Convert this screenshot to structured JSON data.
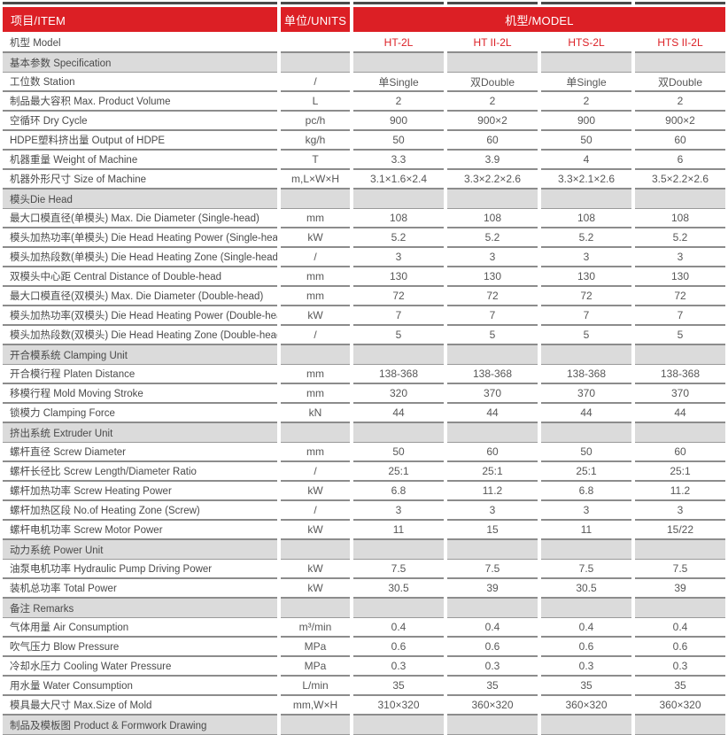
{
  "table": {
    "colors": {
      "accent": "#DC1F25",
      "section_bg": "#DBDBDB",
      "row_line": "#8C8C8C",
      "top_rule": "#4A4A4A"
    },
    "header": {
      "item": "项目/ITEM",
      "units": "单位/UNITS",
      "model": "机型/MODEL"
    },
    "rows": [
      {
        "type": "model",
        "label": "机型 Model",
        "unit": "",
        "values": [
          "HT-2L",
          "HT II-2L",
          "HTS-2L",
          "HTS II-2L"
        ]
      },
      {
        "type": "section",
        "label": "基本参数 Specification"
      },
      {
        "type": "data",
        "label": "工位数 Station",
        "unit": "/",
        "values": [
          "单Single",
          "双Double",
          "单Single",
          "双Double"
        ]
      },
      {
        "type": "data",
        "label": "制品最大容积 Max. Product Volume",
        "unit": "L",
        "values": [
          "2",
          "2",
          "2",
          "2"
        ]
      },
      {
        "type": "data",
        "label": "空循环 Dry Cycle",
        "unit": "pc/h",
        "values": [
          "900",
          "900×2",
          "900",
          "900×2"
        ]
      },
      {
        "type": "data",
        "label": "HDPE塑料挤出量 Output of HDPE",
        "unit": "kg/h",
        "values": [
          "50",
          "60",
          "50",
          "60"
        ]
      },
      {
        "type": "data",
        "label": "机器重量 Weight of Machine",
        "unit": "T",
        "values": [
          "3.3",
          "3.9",
          "4",
          "6"
        ]
      },
      {
        "type": "data",
        "label": "机器外形尺寸 Size of Machine",
        "unit": "m,L×W×H",
        "values": [
          "3.1×1.6×2.4",
          "3.3×2.2×2.6",
          "3.3×2.1×2.6",
          "3.5×2.2×2.6"
        ]
      },
      {
        "type": "section",
        "label": "模头Die Head"
      },
      {
        "type": "data",
        "label": "最大口模直径(单模头) Max. Die Diameter (Single-head)",
        "unit": "mm",
        "values": [
          "108",
          "108",
          "108",
          "108"
        ]
      },
      {
        "type": "data",
        "label": "模头加热功率(单模头) Die Head Heating Power (Single-head)",
        "unit": "kW",
        "values": [
          "5.2",
          "5.2",
          "5.2",
          "5.2"
        ]
      },
      {
        "type": "data",
        "label": "模头加热段数(单模头) Die Head Heating Zone (Single-head)",
        "unit": "/",
        "values": [
          "3",
          "3",
          "3",
          "3"
        ]
      },
      {
        "type": "data",
        "label": "双模头中心距 Central Distance of Double-head",
        "unit": "mm",
        "values": [
          "130",
          "130",
          "130",
          "130"
        ]
      },
      {
        "type": "data",
        "label": "最大口模直径(双模头) Max. Die Diameter (Double-head)",
        "unit": "mm",
        "values": [
          "72",
          "72",
          "72",
          "72"
        ]
      },
      {
        "type": "data",
        "label": "模头加热功率(双模头) Die Head Heating Power (Double-head)",
        "unit": "kW",
        "values": [
          "7",
          "7",
          "7",
          "7"
        ]
      },
      {
        "type": "data",
        "label": "模头加热段数(双模头) Die Head Heating Zone (Double-head)",
        "unit": "/",
        "values": [
          "5",
          "5",
          "5",
          "5"
        ]
      },
      {
        "type": "section",
        "label": "开合模系统 Clamping Unit"
      },
      {
        "type": "data",
        "label": "开合模行程 Platen Distance",
        "unit": "mm",
        "values": [
          "138-368",
          "138-368",
          "138-368",
          "138-368"
        ]
      },
      {
        "type": "data",
        "label": "移模行程 Mold Moving Stroke",
        "unit": "mm",
        "values": [
          "320",
          "370",
          "370",
          "370"
        ]
      },
      {
        "type": "data",
        "label": "锁模力 Clamping Force",
        "unit": "kN",
        "values": [
          "44",
          "44",
          "44",
          "44"
        ]
      },
      {
        "type": "section",
        "label": "挤出系统 Extruder Unit"
      },
      {
        "type": "data",
        "label": "螺杆直径 Screw Diameter",
        "unit": "mm",
        "values": [
          "50",
          "60",
          "50",
          "60"
        ]
      },
      {
        "type": "data",
        "label": "螺杆长径比 Screw Length/Diameter Ratio",
        "unit": "/",
        "values": [
          "25:1",
          "25:1",
          "25:1",
          "25:1"
        ]
      },
      {
        "type": "data",
        "label": "螺杆加热功率 Screw Heating Power",
        "unit": "kW",
        "values": [
          "6.8",
          "11.2",
          "6.8",
          "11.2"
        ]
      },
      {
        "type": "data",
        "label": "螺杆加热区段 No.of Heating Zone (Screw)",
        "unit": "/",
        "values": [
          "3",
          "3",
          "3",
          "3"
        ]
      },
      {
        "type": "data",
        "label": "螺杆电机功率 Screw Motor Power",
        "unit": "kW",
        "values": [
          "11",
          "15",
          "11",
          "15/22"
        ]
      },
      {
        "type": "section",
        "label": "动力系统 Power Unit"
      },
      {
        "type": "data",
        "label": "油泵电机功率 Hydraulic Pump Driving Power",
        "unit": "kW",
        "values": [
          "7.5",
          "7.5",
          "7.5",
          "7.5"
        ]
      },
      {
        "type": "data",
        "label": "装机总功率 Total Power",
        "unit": "kW",
        "values": [
          "30.5",
          "39",
          "30.5",
          "39"
        ]
      },
      {
        "type": "section",
        "label": "备注 Remarks"
      },
      {
        "type": "data",
        "label": "气体用量 Air Consumption",
        "unit": "m³/min",
        "values": [
          "0.4",
          "0.4",
          "0.4",
          "0.4"
        ]
      },
      {
        "type": "data",
        "label": "吹气压力 Blow Pressure",
        "unit": "MPa",
        "values": [
          "0.6",
          "0.6",
          "0.6",
          "0.6"
        ]
      },
      {
        "type": "data",
        "label": "冷却水压力 Cooling Water Pressure",
        "unit": "MPa",
        "values": [
          "0.3",
          "0.3",
          "0.3",
          "0.3"
        ]
      },
      {
        "type": "data",
        "label": "用水量 Water Consumption",
        "unit": "L/min",
        "values": [
          "35",
          "35",
          "35",
          "35"
        ]
      },
      {
        "type": "data",
        "label": "模具最大尺寸 Max.Size of Mold",
        "unit": "mm,W×H",
        "values": [
          "310×320",
          "360×320",
          "360×320",
          "360×320"
        ]
      },
      {
        "type": "section",
        "label": "制品及模板图 Product & Formwork Drawing"
      }
    ]
  }
}
